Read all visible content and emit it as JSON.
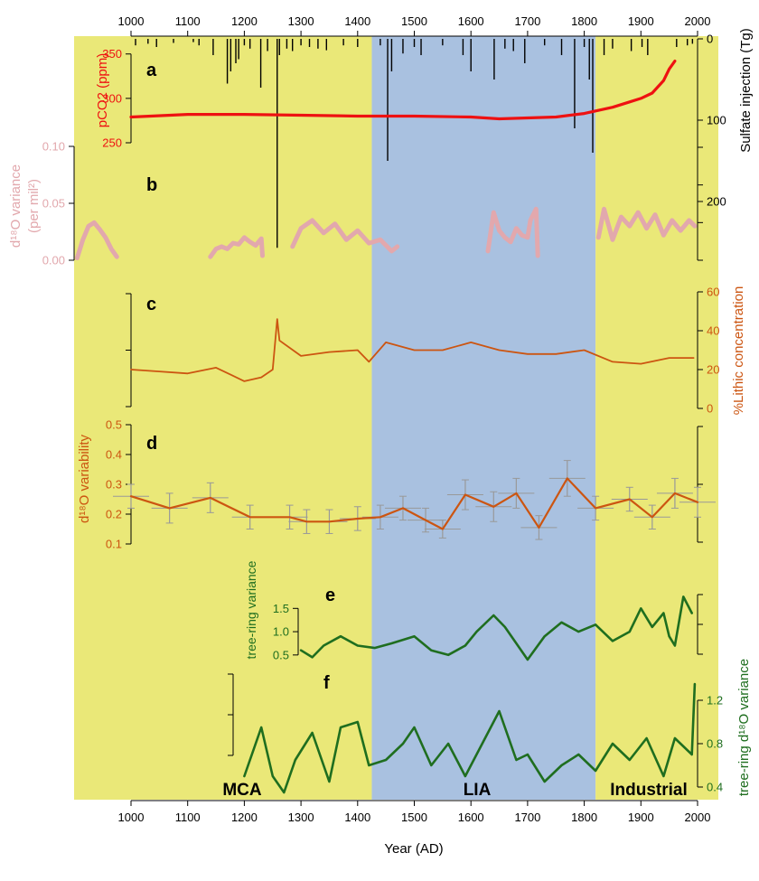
{
  "chart_data": {
    "type": "line",
    "x_axis": {
      "label": "Year (AD)",
      "range": [
        1000,
        2000
      ],
      "ticks": [
        1000,
        1100,
        1200,
        1300,
        1400,
        1500,
        1600,
        1700,
        1800,
        1900,
        2000
      ]
    },
    "periods": [
      {
        "label": "MCA",
        "start": 900,
        "end": 1425,
        "color": "#eae878"
      },
      {
        "label": "LIA",
        "start": 1425,
        "end": 1820,
        "color": "#a9c1e0"
      },
      {
        "label": "Industrial",
        "start": 1820,
        "end": 1995,
        "color": "#eae878"
      }
    ],
    "panels": [
      {
        "letter": "a",
        "left_axis": {
          "label": "pCO2 (ppm)",
          "range": [
            250,
            365
          ],
          "ticks": [
            250,
            300,
            350
          ],
          "color": "#ee1111"
        },
        "right_axis": {
          "label": "Sulfate injection (Tg)",
          "range": [
            0,
            230
          ],
          "ticks": [
            0,
            100,
            200
          ],
          "reversed": true,
          "color": "#000000"
        },
        "series": [
          {
            "axis": "left",
            "color": "#ee1111",
            "x": [
              1000,
              1100,
              1200,
              1300,
              1400,
              1500,
              1600,
              1650,
              1700,
              1750,
              1800,
              1850,
              1880,
              1900,
              1920,
              1940,
              1950,
              1960
            ],
            "y": [
              279,
              282,
              282,
              281,
              280,
              280,
              279,
              277,
              278,
              279,
              283,
              290,
              296,
              300,
              306,
              320,
              333,
              342
            ]
          },
          {
            "axis": "right",
            "color": "#000000",
            "style": "spikes",
            "x": [
              1008,
              1030,
              1045,
              1075,
              1110,
              1120,
              1145,
              1170,
              1176,
              1185,
              1190,
              1200,
              1210,
              1229,
              1241,
              1258,
              1262,
              1275,
              1285,
              1300,
              1315,
              1330,
              1345,
              1375,
              1400,
              1440,
              1453,
              1460,
              1480,
              1500,
              1512,
              1550,
              1586,
              1600,
              1641,
              1660,
              1675,
              1695,
              1730,
              1760,
              1783,
              1800,
              1809,
              1815,
              1835,
              1850,
              1883,
              1902,
              1912,
              1963,
              1982,
              1991
            ],
            "y": [
              8,
              6,
              10,
              5,
              4,
              8,
              20,
              55,
              40,
              30,
              25,
              8,
              12,
              60,
              15,
              257,
              20,
              12,
              15,
              8,
              10,
              12,
              14,
              8,
              10,
              8,
              150,
              40,
              18,
              10,
              20,
              8,
              20,
              40,
              50,
              12,
              15,
              30,
              8,
              20,
              110,
              10,
              50,
              140,
              20,
              12,
              15,
              10,
              20,
              10,
              8,
              6
            ]
          }
        ]
      },
      {
        "letter": "b",
        "left_axis": {
          "label": "d¹⁸O variance (per mil²)",
          "range": [
            0,
            0.1
          ],
          "ticks": [
            0,
            0.05,
            0.1
          ],
          "color": "#e2a8ad"
        },
        "series": [
          {
            "color": "#e2a8ad",
            "segments": [
              {
                "x": [
                  905,
                  915,
                  925,
                  935,
                  945,
                  955,
                  965,
                  975
                ],
                "y": [
                  0.002,
                  0.018,
                  0.03,
                  0.033,
                  0.027,
                  0.02,
                  0.01,
                  0.003
                ]
              },
              {
                "x": [
                  1140,
                  1150,
                  1160,
                  1170,
                  1180,
                  1190,
                  1200,
                  1210,
                  1220,
                  1230,
                  1232
                ],
                "y": [
                  0.003,
                  0.01,
                  0.012,
                  0.01,
                  0.015,
                  0.014,
                  0.02,
                  0.016,
                  0.013,
                  0.019,
                  0.004
                ]
              },
              {
                "x": [
                  1285,
                  1300,
                  1320,
                  1340,
                  1360,
                  1380,
                  1400,
                  1420,
                  1440,
                  1460,
                  1470
                ],
                "y": [
                  0.012,
                  0.028,
                  0.035,
                  0.024,
                  0.032,
                  0.018,
                  0.026,
                  0.015,
                  0.018,
                  0.008,
                  0.012
                ]
              },
              {
                "x": [
                  1630,
                  1640,
                  1650,
                  1660,
                  1670,
                  1680,
                  1690,
                  1700,
                  1705,
                  1715,
                  1718
                ],
                "y": [
                  0.008,
                  0.042,
                  0.026,
                  0.02,
                  0.016,
                  0.028,
                  0.022,
                  0.02,
                  0.035,
                  0.045,
                  0.004
                ]
              },
              {
                "x": [
                  1825,
                  1835,
                  1850,
                  1865,
                  1880,
                  1895,
                  1910,
                  1925,
                  1940,
                  1955,
                  1970,
                  1985,
                  1995
                ],
                "y": [
                  0.02,
                  0.045,
                  0.018,
                  0.038,
                  0.03,
                  0.042,
                  0.028,
                  0.04,
                  0.022,
                  0.035,
                  0.026,
                  0.035,
                  0.03
                ]
              }
            ]
          }
        ]
      },
      {
        "letter": "c",
        "right_axis": {
          "label": "%Lithic concentration",
          "range": [
            0,
            60
          ],
          "ticks": [
            0,
            20,
            40,
            60
          ],
          "color": "#cc5511"
        },
        "series": [
          {
            "color": "#cc5511",
            "x": [
              1000,
              1050,
              1100,
              1150,
              1200,
              1230,
              1250,
              1258,
              1262,
              1300,
              1350,
              1400,
              1420,
              1450,
              1500,
              1550,
              1600,
              1650,
              1700,
              1750,
              1800,
              1850,
              1900,
              1950,
              1993
            ],
            "y": [
              20,
              19,
              18,
              21,
              14,
              16,
              20,
              46,
              35,
              27,
              29,
              30,
              24,
              34,
              30,
              30,
              34,
              30,
              28,
              28,
              30,
              24,
              23,
              26,
              26
            ]
          }
        ]
      },
      {
        "letter": "d",
        "left_axis": {
          "label": "d¹⁸O variability",
          "range": [
            0.1,
            0.5
          ],
          "ticks": [
            0.1,
            0.2,
            0.3,
            0.4,
            0.5
          ],
          "color": "#cc5511"
        },
        "series": [
          {
            "color": "#cc5511",
            "error_color": "#999999",
            "x": [
              1000,
              1068,
              1140,
              1210,
              1280,
              1310,
              1350,
              1400,
              1440,
              1480,
              1520,
              1550,
              1590,
              1640,
              1680,
              1720,
              1770,
              1820,
              1880,
              1920,
              1960,
              2000
            ],
            "y": [
              0.26,
              0.22,
              0.255,
              0.19,
              0.19,
              0.175,
              0.175,
              0.185,
              0.19,
              0.22,
              0.18,
              0.15,
              0.265,
              0.225,
              0.27,
              0.155,
              0.32,
              0.22,
              0.25,
              0.19,
              0.27,
              0.24
            ],
            "err": [
              0.04,
              0.05,
              0.05,
              0.04,
              0.04,
              0.04,
              0.04,
              0.04,
              0.04,
              0.04,
              0.04,
              0.03,
              0.05,
              0.05,
              0.05,
              0.04,
              0.06,
              0.04,
              0.04,
              0.04,
              0.05,
              0.05
            ]
          }
        ]
      },
      {
        "letter": "e",
        "left_axis": {
          "label": "tree-ring variance",
          "range": [
            0.4,
            1.7
          ],
          "ticks": [
            0.5,
            1.0,
            1.5
          ],
          "color": "#1f6e1f"
        },
        "series": [
          {
            "color": "#1f6e1f",
            "x": [
              1300,
              1320,
              1340,
              1370,
              1400,
              1430,
              1460,
              1500,
              1530,
              1560,
              1590,
              1610,
              1640,
              1660,
              1700,
              1730,
              1760,
              1790,
              1820,
              1850,
              1880,
              1900,
              1920,
              1940,
              1950,
              1960,
              1975,
              1990
            ],
            "y": [
              0.6,
              0.45,
              0.7,
              0.9,
              0.7,
              0.65,
              0.75,
              0.9,
              0.6,
              0.5,
              0.7,
              1.0,
              1.35,
              1.1,
              0.4,
              0.9,
              1.2,
              1.0,
              1.15,
              0.8,
              1.0,
              1.5,
              1.1,
              1.4,
              0.9,
              0.7,
              1.75,
              1.4
            ]
          }
        ]
      },
      {
        "letter": "f",
        "right_axis": {
          "label": "tree-ring d¹⁸O variance",
          "range": [
            0.3,
            1.35
          ],
          "ticks": [
            0.4,
            0.8,
            1.2
          ],
          "color": "#1f6e1f"
        },
        "series": [
          {
            "color": "#1f6e1f",
            "x": [
              1200,
              1230,
              1250,
              1270,
              1290,
              1320,
              1350,
              1370,
              1400,
              1420,
              1450,
              1480,
              1500,
              1530,
              1560,
              1590,
              1620,
              1650,
              1680,
              1700,
              1730,
              1760,
              1790,
              1820,
              1850,
              1880,
              1910,
              1940,
              1960,
              1990,
              1995
            ],
            "y": [
              0.5,
              0.95,
              0.5,
              0.35,
              0.65,
              0.9,
              0.45,
              0.95,
              1.0,
              0.6,
              0.65,
              0.8,
              0.95,
              0.6,
              0.8,
              0.5,
              0.8,
              1.1,
              0.65,
              0.7,
              0.45,
              0.6,
              0.7,
              0.55,
              0.8,
              0.65,
              0.85,
              0.5,
              0.85,
              0.7,
              1.35
            ]
          }
        ]
      }
    ],
    "top_axis": {
      "ticks": [
        1000,
        1100,
        1200,
        1300,
        1400,
        1500,
        1600,
        1700,
        1800,
        1900,
        2000
      ]
    }
  }
}
